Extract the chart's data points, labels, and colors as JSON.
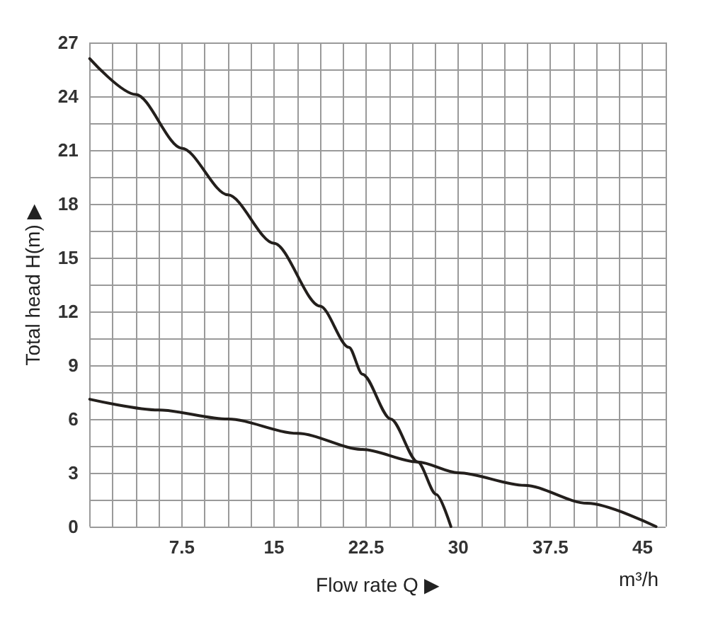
{
  "chart_data": {
    "type": "line",
    "xlabel": "Flow rate Q ▶",
    "ylabel": "Total head H(m) ▶",
    "annotations": [
      "m³/h"
    ],
    "xlim": [
      0,
      46.875
    ],
    "ylim": [
      0,
      27
    ],
    "xticks": [
      {
        "value": 0,
        "label": null
      },
      {
        "value": 1.875,
        "label": null
      },
      {
        "value": 3.75,
        "label": null
      },
      {
        "value": 5.625,
        "label": null
      },
      7.5,
      {
        "value": 9.375,
        "label": null
      },
      {
        "value": 11.25,
        "label": null
      },
      {
        "value": 13.125,
        "label": null
      },
      15,
      {
        "value": 16.875,
        "label": null
      },
      {
        "value": 18.75,
        "label": null
      },
      {
        "value": 20.625,
        "label": null
      },
      22.5,
      {
        "value": 24.375,
        "label": null
      },
      {
        "value": 26.25,
        "label": null
      },
      {
        "value": 28.125,
        "label": null
      },
      30,
      {
        "value": 31.875,
        "label": null
      },
      {
        "value": 33.75,
        "label": null
      },
      {
        "value": 35.625,
        "label": null
      },
      37.5,
      {
        "value": 39.375,
        "label": null
      },
      {
        "value": 41.25,
        "label": null
      },
      {
        "value": 43.125,
        "label": null
      },
      45,
      {
        "value": 46.875,
        "label": null
      }
    ],
    "yticks": [
      0,
      {
        "value": 1.5,
        "label": null
      },
      3,
      {
        "value": 4.5,
        "label": null
      },
      6,
      {
        "value": 7.5,
        "label": null
      },
      9,
      {
        "value": 10.5,
        "label": null
      },
      12,
      {
        "value": 13.5,
        "label": null
      },
      15,
      {
        "value": 16.5,
        "label": null
      },
      18,
      {
        "value": 19.5,
        "label": null
      },
      21,
      {
        "value": 22.5,
        "label": null
      },
      24,
      {
        "value": 25.5,
        "label": null
      },
      27
    ],
    "grid": true,
    "marker": "none",
    "line_style": "solid",
    "series": [
      {
        "color": "#231f1c",
        "x": [
          0,
          3.75,
          7.5,
          11.25,
          15,
          18.75,
          21.1,
          22.2,
          24.5,
          26.7,
          28.2,
          29.4
        ],
        "values": [
          26.1,
          24.1,
          21.1,
          18.5,
          15.8,
          12.3,
          10,
          8.5,
          6.0,
          3.6,
          1.8,
          0
        ]
      },
      {
        "color": "#231f1c",
        "x": [
          0,
          5.6,
          11.25,
          16.9,
          22.2,
          26.7,
          30,
          35.4,
          40.5,
          46.1
        ],
        "values": [
          7.1,
          6.5,
          6.0,
          5.2,
          4.3,
          3.6,
          3.0,
          2.3,
          1.3,
          0
        ]
      }
    ]
  }
}
